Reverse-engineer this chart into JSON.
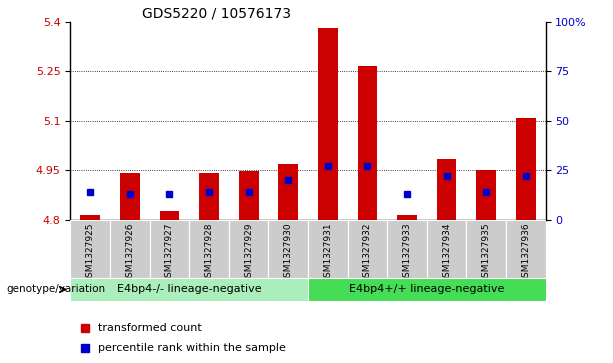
{
  "title": "GDS5220 / 10576173",
  "samples": [
    "GSM1327925",
    "GSM1327926",
    "GSM1327927",
    "GSM1327928",
    "GSM1327929",
    "GSM1327930",
    "GSM1327931",
    "GSM1327932",
    "GSM1327933",
    "GSM1327934",
    "GSM1327935",
    "GSM1327936"
  ],
  "red_values": [
    4.815,
    4.94,
    4.825,
    4.94,
    4.948,
    4.968,
    5.38,
    5.265,
    4.815,
    4.985,
    4.95,
    5.108
  ],
  "blue_positions": [
    14,
    13,
    13,
    14,
    14,
    20,
    27,
    27,
    13,
    22,
    14,
    22
  ],
  "ymin": 4.8,
  "ymax": 5.4,
  "yticks": [
    4.8,
    4.95,
    5.1,
    5.25,
    5.4
  ],
  "ytick_labels": [
    "4.8",
    "4.95",
    "5.1",
    "5.25",
    "5.4"
  ],
  "right_yticks": [
    0,
    25,
    50,
    75,
    100
  ],
  "right_ytick_labels": [
    "0",
    "25",
    "50",
    "75",
    "100%"
  ],
  "group1_label": "E4bp4-/- lineage-negative",
  "group2_label": "E4bp4+/+ lineage-negative",
  "group_label_prefix": "genotype/variation",
  "legend1": "transformed count",
  "legend2": "percentile rank within the sample",
  "bar_color": "#cc0000",
  "blue_color": "#0000cc",
  "group1_bg": "#aaeebb",
  "group2_bg": "#44dd55",
  "tick_bg": "#cccccc",
  "bar_width": 0.5,
  "grid_lines": [
    4.95,
    5.1,
    5.25
  ],
  "title_fontsize": 10,
  "axis_fontsize": 8,
  "label_fontsize": 6.5
}
